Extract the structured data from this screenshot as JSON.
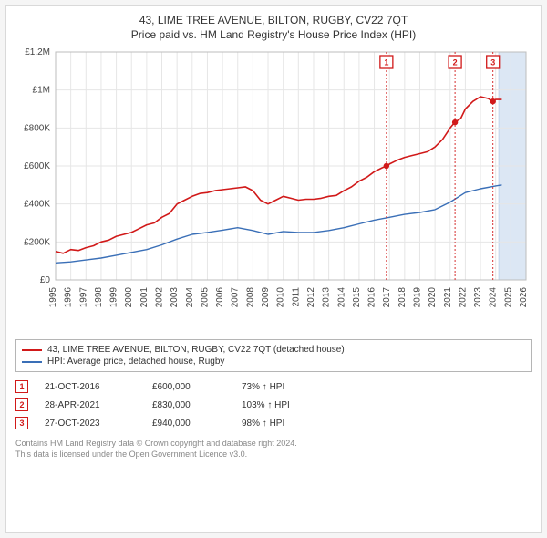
{
  "title_main": "43, LIME TREE AVENUE, BILTON, RUGBY, CV22 7QT",
  "title_sub": "Price paid vs. HM Land Registry's House Price Index (HPI)",
  "chart": {
    "type": "line",
    "background_color": "#ffffff",
    "grid_color": "#e6e6e6",
    "late_band_color": "#dce7f4",
    "late_band_border": "#a9c3e2",
    "late_band_start_year": 2024.2,
    "late_band_end_year": 2026,
    "ylim": [
      0,
      1200000
    ],
    "ytick_step": 200000,
    "ytick_labels": [
      "£0",
      "£200K",
      "£400K",
      "£600K",
      "£800K",
      "£1M",
      "£1.2M"
    ],
    "xlim": [
      1995,
      2026
    ],
    "xticks": [
      1995,
      1996,
      1997,
      1998,
      1999,
      2000,
      2001,
      2002,
      2003,
      2004,
      2005,
      2006,
      2007,
      2008,
      2009,
      2010,
      2011,
      2012,
      2013,
      2014,
      2015,
      2016,
      2017,
      2018,
      2019,
      2020,
      2021,
      2022,
      2023,
      2024,
      2025,
      2026
    ],
    "series": [
      {
        "name": "price_paid",
        "color": "#d11919",
        "width": 1.6,
        "points": [
          [
            1995,
            150000
          ],
          [
            1995.5,
            140000
          ],
          [
            1996,
            160000
          ],
          [
            1996.5,
            155000
          ],
          [
            1997,
            170000
          ],
          [
            1997.5,
            180000
          ],
          [
            1998,
            200000
          ],
          [
            1998.5,
            210000
          ],
          [
            1999,
            230000
          ],
          [
            1999.5,
            240000
          ],
          [
            2000,
            250000
          ],
          [
            2000.5,
            270000
          ],
          [
            2001,
            290000
          ],
          [
            2001.5,
            300000
          ],
          [
            2002,
            330000
          ],
          [
            2002.5,
            350000
          ],
          [
            2003,
            400000
          ],
          [
            2003.5,
            420000
          ],
          [
            2004,
            440000
          ],
          [
            2004.5,
            455000
          ],
          [
            2005,
            460000
          ],
          [
            2005.5,
            470000
          ],
          [
            2006,
            475000
          ],
          [
            2006.5,
            480000
          ],
          [
            2007,
            485000
          ],
          [
            2007.5,
            490000
          ],
          [
            2008,
            470000
          ],
          [
            2008.5,
            420000
          ],
          [
            2009,
            400000
          ],
          [
            2009.5,
            420000
          ],
          [
            2010,
            440000
          ],
          [
            2010.5,
            430000
          ],
          [
            2011,
            420000
          ],
          [
            2011.5,
            425000
          ],
          [
            2012,
            425000
          ],
          [
            2012.5,
            430000
          ],
          [
            2013,
            440000
          ],
          [
            2013.5,
            445000
          ],
          [
            2014,
            470000
          ],
          [
            2014.5,
            490000
          ],
          [
            2015,
            520000
          ],
          [
            2015.5,
            540000
          ],
          [
            2016,
            570000
          ],
          [
            2016.5,
            590000
          ],
          [
            2016.8,
            600000
          ],
          [
            2017,
            610000
          ],
          [
            2017.5,
            630000
          ],
          [
            2018,
            645000
          ],
          [
            2018.5,
            655000
          ],
          [
            2019,
            665000
          ],
          [
            2019.5,
            675000
          ],
          [
            2020,
            700000
          ],
          [
            2020.5,
            740000
          ],
          [
            2021,
            800000
          ],
          [
            2021.3,
            830000
          ],
          [
            2021.7,
            850000
          ],
          [
            2022,
            900000
          ],
          [
            2022.5,
            940000
          ],
          [
            2023,
            965000
          ],
          [
            2023.5,
            955000
          ],
          [
            2023.8,
            940000
          ],
          [
            2024,
            950000
          ],
          [
            2024.4,
            950000
          ]
        ]
      },
      {
        "name": "hpi",
        "color": "#3a6fb7",
        "width": 1.4,
        "points": [
          [
            1995,
            90000
          ],
          [
            1996,
            95000
          ],
          [
            1997,
            105000
          ],
          [
            1998,
            115000
          ],
          [
            1999,
            130000
          ],
          [
            2000,
            145000
          ],
          [
            2001,
            160000
          ],
          [
            2002,
            185000
          ],
          [
            2003,
            215000
          ],
          [
            2004,
            240000
          ],
          [
            2005,
            250000
          ],
          [
            2006,
            262000
          ],
          [
            2007,
            275000
          ],
          [
            2008,
            260000
          ],
          [
            2009,
            240000
          ],
          [
            2010,
            255000
          ],
          [
            2011,
            250000
          ],
          [
            2012,
            250000
          ],
          [
            2013,
            260000
          ],
          [
            2014,
            275000
          ],
          [
            2015,
            295000
          ],
          [
            2016,
            315000
          ],
          [
            2017,
            330000
          ],
          [
            2018,
            345000
          ],
          [
            2019,
            355000
          ],
          [
            2020,
            370000
          ],
          [
            2021,
            410000
          ],
          [
            2022,
            460000
          ],
          [
            2023,
            480000
          ],
          [
            2024,
            495000
          ],
          [
            2024.4,
            500000
          ]
        ]
      }
    ],
    "sale_markers": [
      {
        "n": "1",
        "year": 2016.8,
        "value": 600000
      },
      {
        "n": "2",
        "year": 2021.32,
        "value": 830000
      },
      {
        "n": "3",
        "year": 2023.82,
        "value": 940000
      }
    ]
  },
  "legend": [
    {
      "color": "#d11919",
      "label": "43, LIME TREE AVENUE, BILTON, RUGBY, CV22 7QT (detached house)"
    },
    {
      "color": "#3a6fb7",
      "label": "HPI: Average price, detached house, Rugby"
    }
  ],
  "sales": [
    {
      "n": "1",
      "date": "21-OCT-2016",
      "price": "£600,000",
      "pct": "73% ↑ HPI"
    },
    {
      "n": "2",
      "date": "28-APR-2021",
      "price": "£830,000",
      "pct": "103% ↑ HPI"
    },
    {
      "n": "3",
      "date": "27-OCT-2023",
      "price": "£940,000",
      "pct": "98% ↑ HPI"
    }
  ],
  "attribution_l1": "Contains HM Land Registry data © Crown copyright and database right 2024.",
  "attribution_l2": "This data is licensed under the Open Government Licence v3.0."
}
